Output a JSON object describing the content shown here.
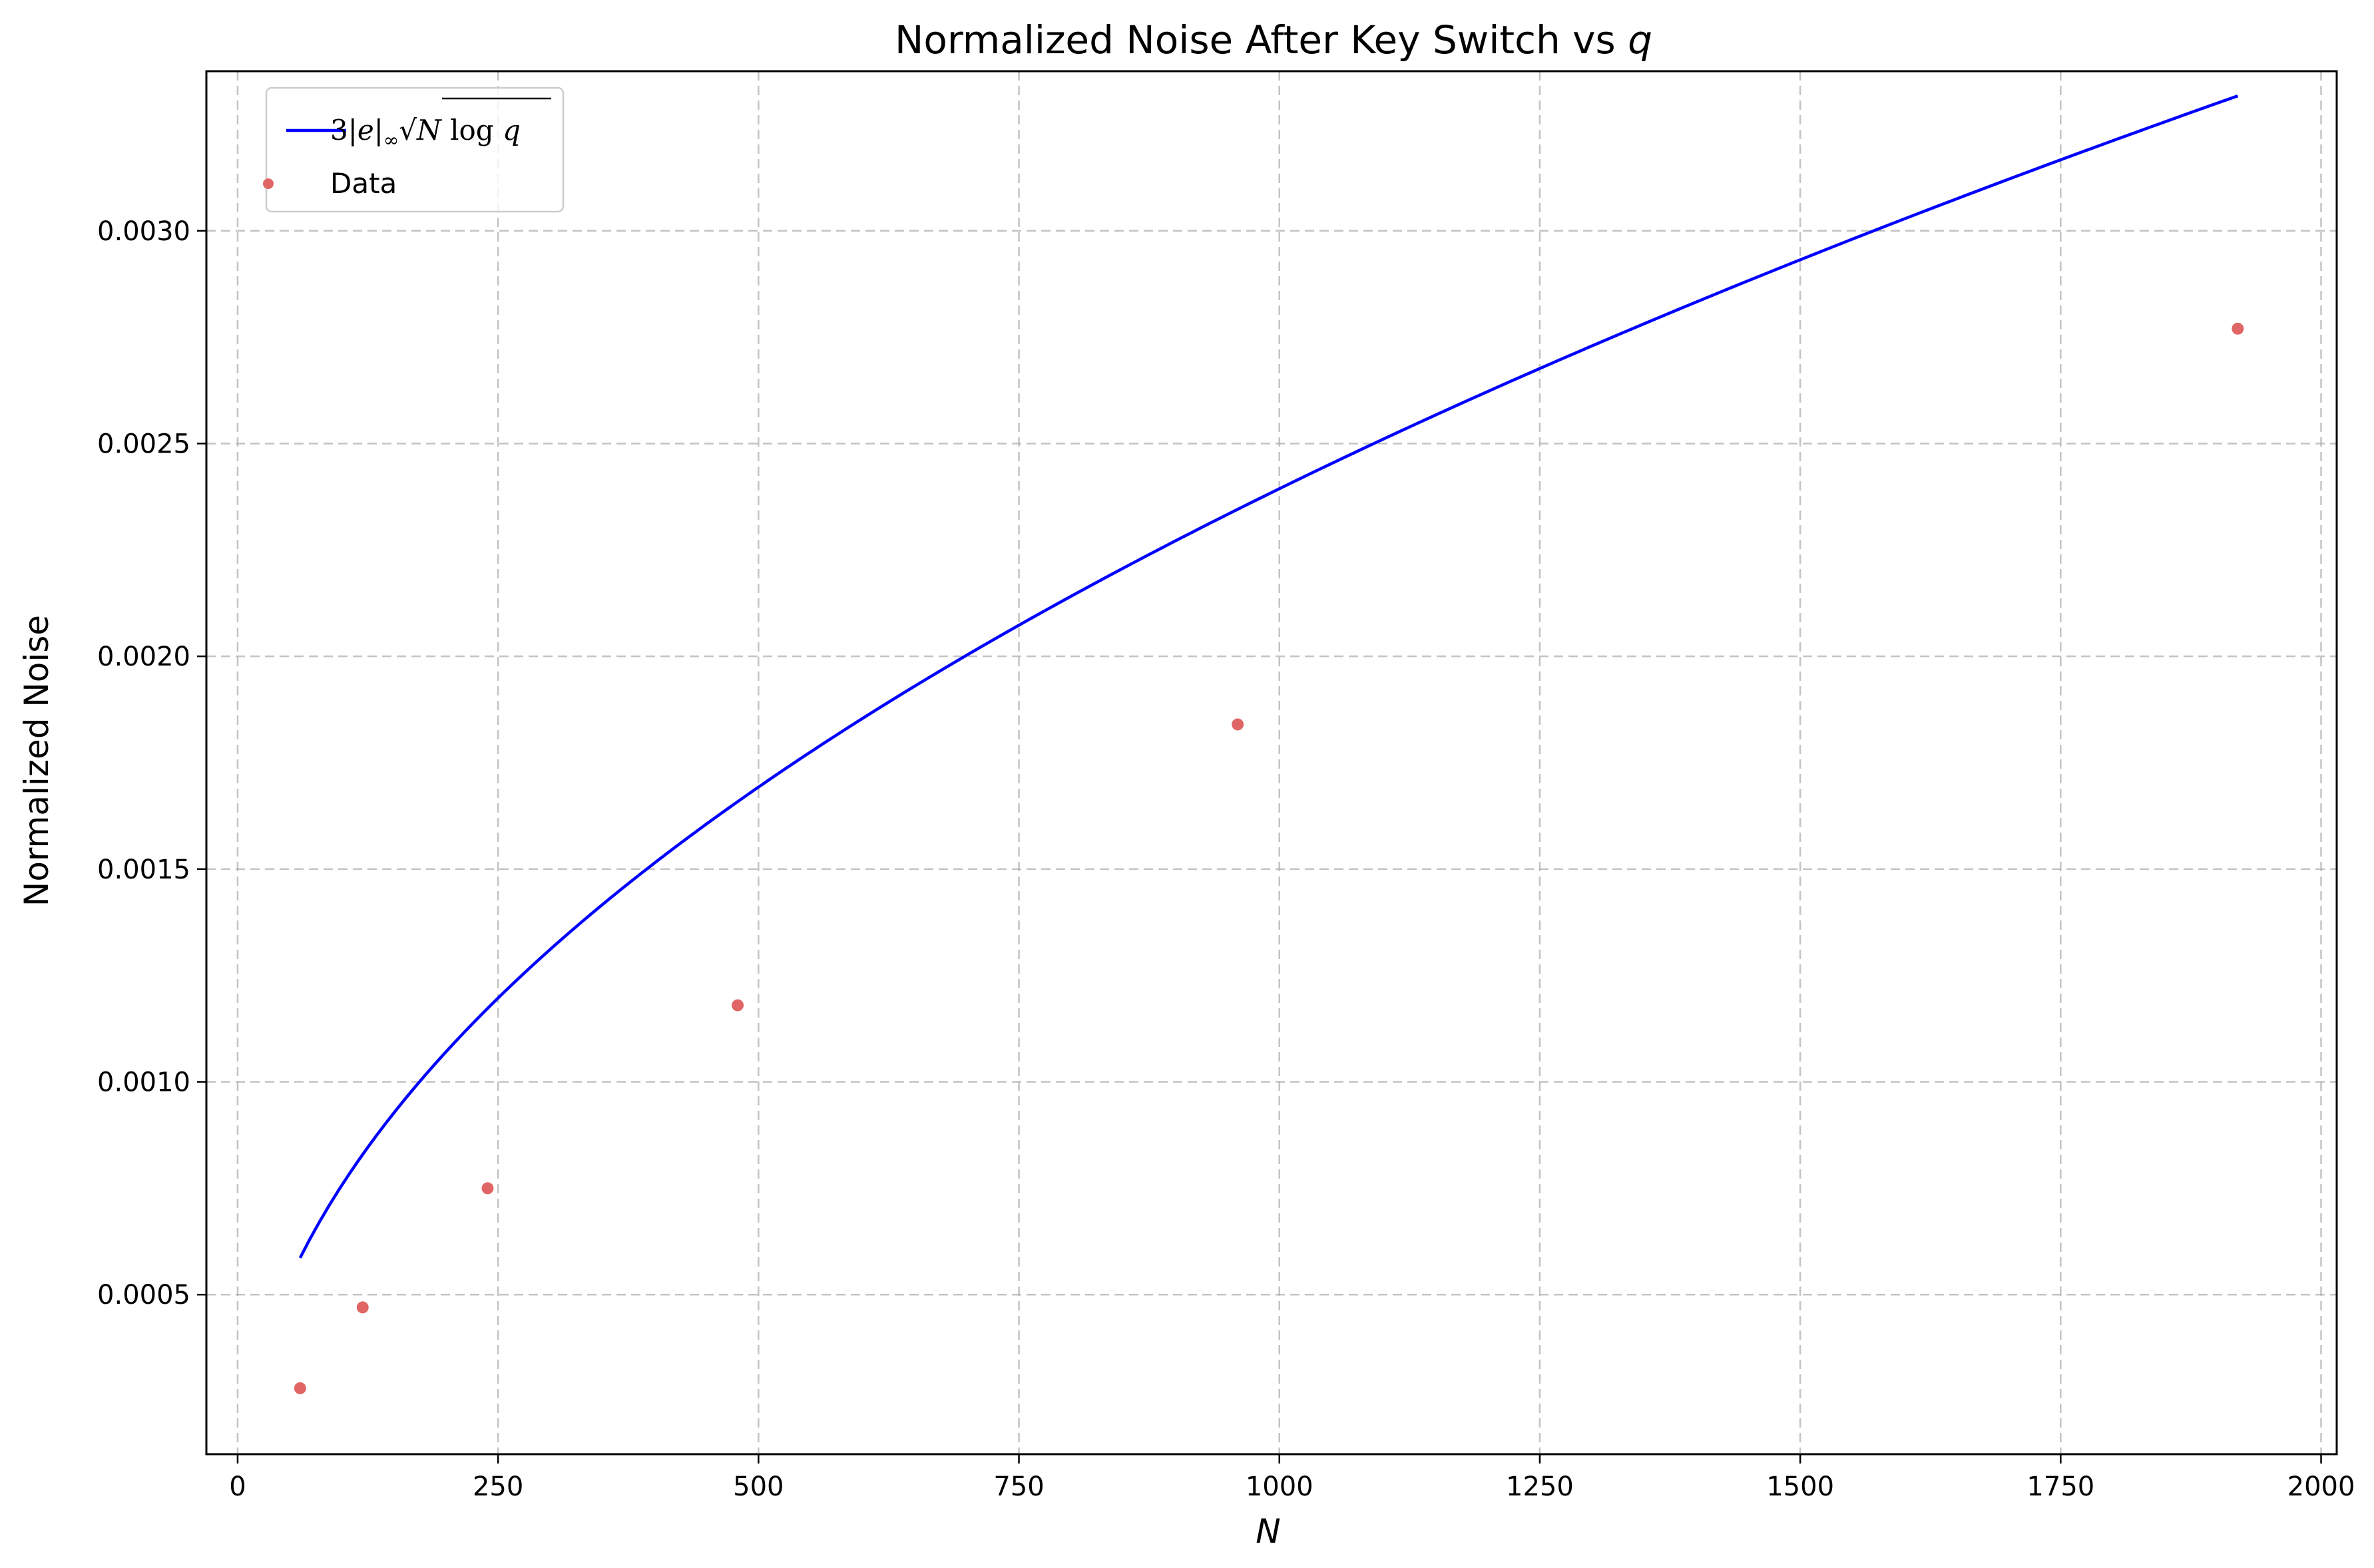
{
  "chart_data": {
    "type": "line",
    "title": "Normalized Noise After Key Switch vs ",
    "title_var": "q",
    "xlabel": "N",
    "ylabel": "Normalized Noise",
    "xlim": [
      -30,
      2015
    ],
    "ylim": [
      0.000125,
      0.003375
    ],
    "x_ticks": [
      0,
      250,
      500,
      750,
      1000,
      1250,
      1500,
      1750,
      2000
    ],
    "x_tick_labels": [
      "0",
      "250",
      "500",
      "750",
      "1000",
      "1250",
      "1500",
      "1750",
      "2000"
    ],
    "y_ticks": [
      0.0005,
      0.001,
      0.0015,
      0.002,
      0.0025,
      0.003
    ],
    "y_tick_labels": [
      "0.0005",
      "0.0010",
      "0.0015",
      "0.0020",
      "0.0025",
      "0.0030"
    ],
    "grid": true,
    "legend_position": "top-left",
    "series": [
      {
        "name": "3|e|∞√(N log q)",
        "kind": "line",
        "color": "#0000ff",
        "x_range": [
          60,
          1920
        ],
        "coefficient": 7.57e-05
      },
      {
        "name": "Data",
        "kind": "scatter",
        "color": "#e06666",
        "x": [
          60,
          120,
          240,
          480,
          960,
          1920
        ],
        "y": [
          0.00028,
          0.00047,
          0.00075,
          0.00118,
          0.00184,
          0.00277
        ]
      }
    ]
  }
}
